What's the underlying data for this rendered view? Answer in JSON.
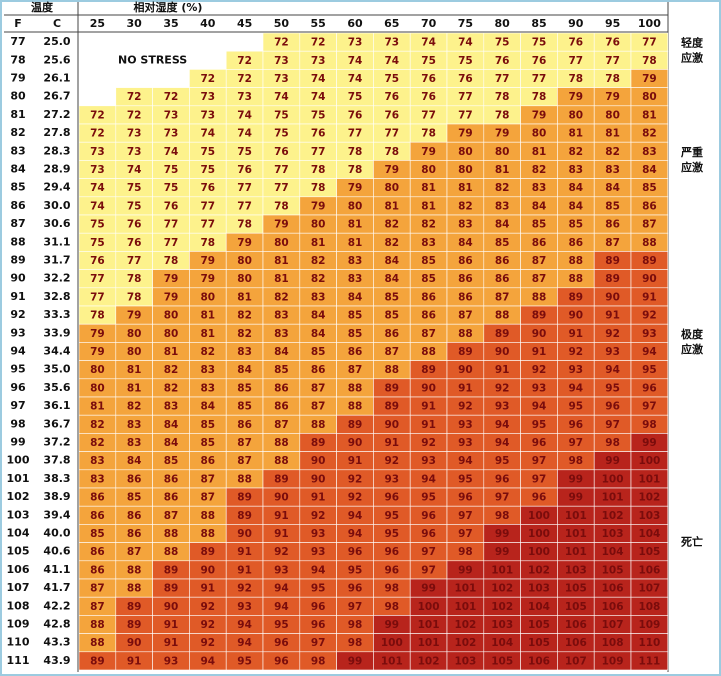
{
  "header": {
    "temperature": "温度",
    "humidity": "相对湿度 (%)",
    "f": "F",
    "c": "C",
    "humidity_values": [
      "25",
      "30",
      "35",
      "40",
      "45",
      "50",
      "55",
      "60",
      "65",
      "70",
      "75",
      "80",
      "85",
      "90",
      "95",
      "100"
    ]
  },
  "no_stress": "NO STRESS",
  "zones": [
    {
      "lines": [
        "轻度",
        "应激"
      ],
      "row": 0
    },
    {
      "lines": [
        "严重",
        "应激"
      ],
      "row": 6
    },
    {
      "lines": [
        "极度",
        "应激"
      ],
      "row": 16
    },
    {
      "lines": [
        "死亡"
      ],
      "row": 27
    }
  ],
  "rows": [
    {
      "f": "77",
      "c": "25.0",
      "values": [
        null,
        null,
        null,
        null,
        null,
        72,
        72,
        73,
        73,
        74,
        74,
        75,
        75,
        76,
        76,
        77
      ]
    },
    {
      "f": "78",
      "c": "25.6",
      "values": [
        null,
        null,
        null,
        null,
        72,
        73,
        73,
        74,
        74,
        75,
        75,
        76,
        76,
        77,
        77,
        78
      ]
    },
    {
      "f": "79",
      "c": "26.1",
      "values": [
        null,
        null,
        null,
        72,
        72,
        73,
        74,
        74,
        75,
        76,
        76,
        77,
        77,
        78,
        78,
        79
      ]
    },
    {
      "f": "80",
      "c": "26.7",
      "values": [
        null,
        72,
        72,
        73,
        73,
        74,
        74,
        75,
        76,
        76,
        77,
        78,
        78,
        79,
        79,
        80
      ]
    },
    {
      "f": "81",
      "c": "27.2",
      "values": [
        72,
        72,
        73,
        73,
        74,
        75,
        75,
        76,
        76,
        77,
        77,
        78,
        79,
        80,
        80,
        81
      ]
    },
    {
      "f": "82",
      "c": "27.8",
      "values": [
        72,
        73,
        73,
        74,
        74,
        75,
        76,
        77,
        77,
        78,
        79,
        79,
        80,
        81,
        81,
        82
      ]
    },
    {
      "f": "83",
      "c": "28.3",
      "values": [
        73,
        73,
        74,
        75,
        75,
        76,
        77,
        78,
        78,
        79,
        80,
        80,
        81,
        82,
        82,
        83
      ]
    },
    {
      "f": "84",
      "c": "28.9",
      "values": [
        73,
        74,
        75,
        75,
        76,
        77,
        78,
        78,
        79,
        80,
        80,
        81,
        82,
        83,
        83,
        84
      ]
    },
    {
      "f": "85",
      "c": "29.4",
      "values": [
        74,
        75,
        75,
        76,
        77,
        77,
        78,
        79,
        80,
        81,
        81,
        82,
        83,
        84,
        84,
        85
      ]
    },
    {
      "f": "86",
      "c": "30.0",
      "values": [
        74,
        75,
        76,
        77,
        77,
        78,
        79,
        80,
        81,
        81,
        82,
        83,
        84,
        84,
        85,
        86
      ]
    },
    {
      "f": "87",
      "c": "30.6",
      "values": [
        75,
        76,
        77,
        77,
        78,
        79,
        80,
        81,
        82,
        82,
        83,
        84,
        85,
        85,
        86,
        87
      ]
    },
    {
      "f": "88",
      "c": "31.1",
      "values": [
        75,
        76,
        77,
        78,
        79,
        80,
        81,
        81,
        82,
        83,
        84,
        85,
        86,
        86,
        87,
        88
      ]
    },
    {
      "f": "89",
      "c": "31.7",
      "values": [
        76,
        77,
        78,
        79,
        80,
        81,
        82,
        83,
        84,
        85,
        86,
        86,
        87,
        88,
        89,
        89
      ]
    },
    {
      "f": "90",
      "c": "32.2",
      "values": [
        77,
        78,
        79,
        79,
        80,
        81,
        82,
        83,
        84,
        85,
        86,
        86,
        87,
        88,
        89,
        90
      ]
    },
    {
      "f": "91",
      "c": "32.8",
      "values": [
        77,
        78,
        79,
        80,
        81,
        82,
        83,
        84,
        85,
        86,
        86,
        87,
        88,
        89,
        90,
        91
      ]
    },
    {
      "f": "92",
      "c": "33.3",
      "values": [
        78,
        79,
        80,
        81,
        82,
        83,
        84,
        85,
        85,
        86,
        87,
        88,
        89,
        90,
        91,
        92
      ]
    },
    {
      "f": "93",
      "c": "33.9",
      "values": [
        79,
        80,
        80,
        81,
        82,
        83,
        84,
        85,
        86,
        87,
        88,
        89,
        90,
        91,
        92,
        93
      ]
    },
    {
      "f": "94",
      "c": "34.4",
      "values": [
        79,
        80,
        81,
        82,
        83,
        84,
        85,
        86,
        87,
        88,
        89,
        90,
        91,
        92,
        93,
        94
      ]
    },
    {
      "f": "95",
      "c": "35.0",
      "values": [
        80,
        81,
        82,
        83,
        84,
        85,
        86,
        87,
        88,
        89,
        90,
        91,
        92,
        93,
        94,
        95
      ]
    },
    {
      "f": "96",
      "c": "35.6",
      "values": [
        80,
        81,
        82,
        83,
        85,
        86,
        87,
        88,
        89,
        90,
        91,
        92,
        93,
        94,
        95,
        96
      ]
    },
    {
      "f": "97",
      "c": "36.1",
      "values": [
        81,
        82,
        83,
        84,
        85,
        86,
        87,
        88,
        89,
        91,
        92,
        93,
        94,
        95,
        96,
        97
      ]
    },
    {
      "f": "98",
      "c": "36.7",
      "values": [
        82,
        83,
        84,
        85,
        86,
        87,
        88,
        89,
        90,
        91,
        93,
        94,
        95,
        96,
        97,
        98
      ]
    },
    {
      "f": "99",
      "c": "37.2",
      "values": [
        82,
        83,
        84,
        85,
        87,
        88,
        89,
        90,
        91,
        92,
        93,
        94,
        96,
        97,
        98,
        99
      ]
    },
    {
      "f": "100",
      "c": "37.8",
      "values": [
        83,
        84,
        85,
        86,
        87,
        88,
        90,
        91,
        92,
        93,
        94,
        95,
        97,
        98,
        99,
        100
      ]
    },
    {
      "f": "101",
      "c": "38.3",
      "values": [
        83,
        86,
        86,
        87,
        88,
        89,
        90,
        92,
        93,
        94,
        95,
        96,
        97,
        99,
        100,
        101
      ]
    },
    {
      "f": "102",
      "c": "38.9",
      "values": [
        86,
        85,
        86,
        87,
        89,
        90,
        91,
        92,
        96,
        95,
        96,
        97,
        96,
        99,
        101,
        102
      ]
    },
    {
      "f": "103",
      "c": "39.4",
      "values": [
        86,
        86,
        87,
        88,
        89,
        91,
        92,
        94,
        95,
        96,
        97,
        98,
        100,
        101,
        102,
        103
      ]
    },
    {
      "f": "104",
      "c": "40.0",
      "values": [
        85,
        86,
        88,
        88,
        90,
        91,
        93,
        94,
        95,
        96,
        97,
        99,
        100,
        101,
        103,
        104
      ]
    },
    {
      "f": "105",
      "c": "40.6",
      "values": [
        86,
        87,
        88,
        89,
        91,
        92,
        93,
        96,
        96,
        97,
        98,
        99,
        100,
        101,
        104,
        105
      ]
    },
    {
      "f": "106",
      "c": "41.1",
      "values": [
        86,
        88,
        89,
        90,
        91,
        93,
        94,
        95,
        96,
        97,
        99,
        101,
        102,
        103,
        105,
        106
      ]
    },
    {
      "f": "107",
      "c": "41.7",
      "values": [
        87,
        88,
        89,
        91,
        92,
        94,
        95,
        96,
        98,
        99,
        101,
        102,
        103,
        105,
        106,
        107
      ]
    },
    {
      "f": "108",
      "c": "42.2",
      "values": [
        87,
        89,
        90,
        92,
        93,
        94,
        96,
        97,
        98,
        100,
        101,
        102,
        104,
        105,
        106,
        108
      ]
    },
    {
      "f": "109",
      "c": "42.8",
      "values": [
        88,
        89,
        91,
        92,
        94,
        95,
        96,
        98,
        99,
        101,
        102,
        103,
        105,
        106,
        107,
        109
      ]
    },
    {
      "f": "110",
      "c": "43.3",
      "values": [
        88,
        90,
        91,
        92,
        94,
        96,
        97,
        98,
        100,
        101,
        102,
        104,
        105,
        106,
        108,
        110
      ]
    },
    {
      "f": "111",
      "c": "43.9",
      "values": [
        89,
        91,
        93,
        94,
        95,
        96,
        98,
        99,
        101,
        102,
        103,
        105,
        106,
        107,
        109,
        111
      ]
    }
  ]
}
